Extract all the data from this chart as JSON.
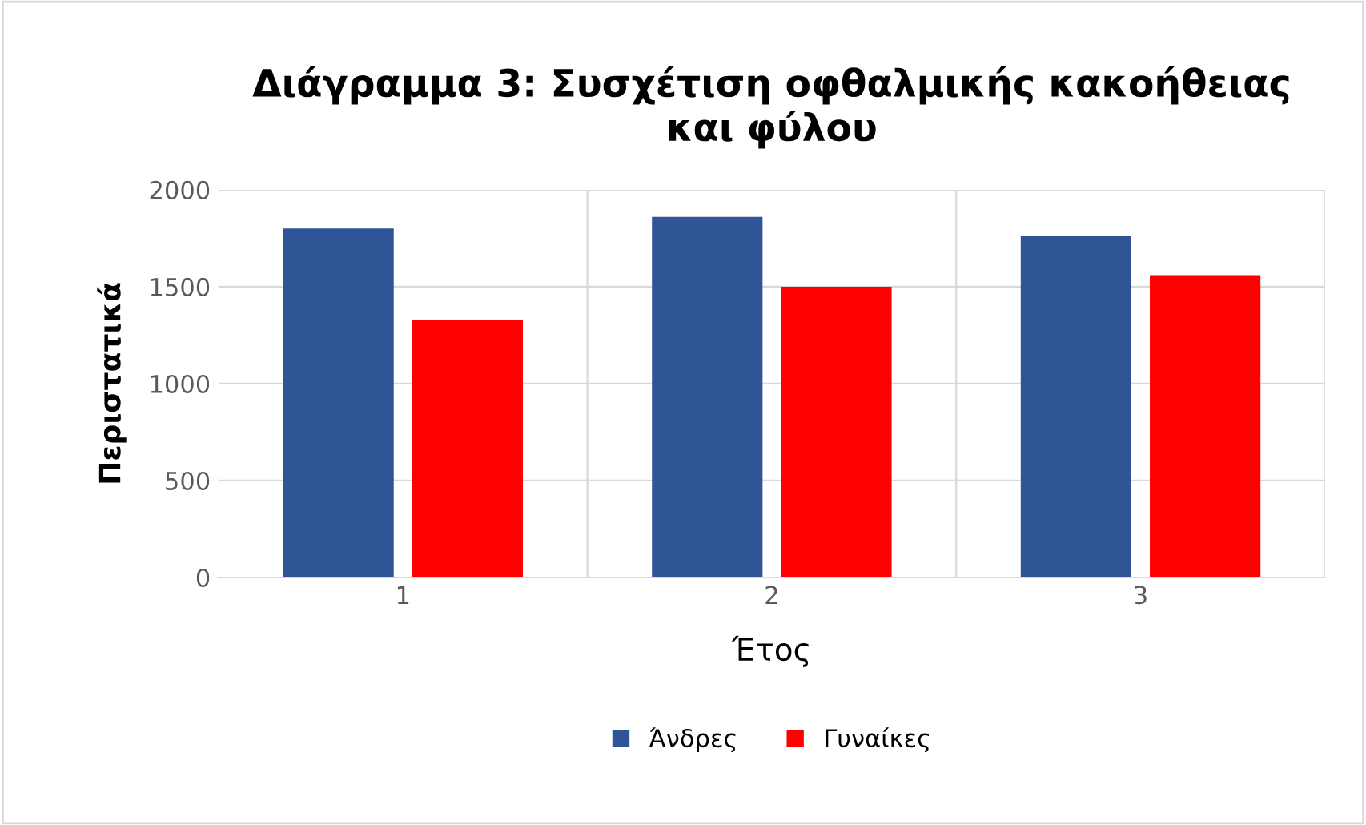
{
  "chart_data": {
    "type": "bar",
    "title": "Διάγραμμα 3: Συσχέτιση οφθαλμικής κακοήθειας\nκαι φύλου",
    "xlabel": "Έτος",
    "ylabel": "Περιστατικά",
    "categories": [
      "1",
      "2",
      "3"
    ],
    "series": [
      {
        "name": "Άνδρες",
        "color": "#2f5597",
        "values": [
          1800,
          1860,
          1760
        ]
      },
      {
        "name": "Γυναίκες",
        "color": "#ff0000",
        "values": [
          1330,
          1500,
          1560
        ]
      }
    ],
    "ylim": [
      0,
      2000
    ],
    "yticks": [
      0,
      500,
      1000,
      1500,
      2000
    ],
    "grid": true,
    "legend": "bottom"
  }
}
